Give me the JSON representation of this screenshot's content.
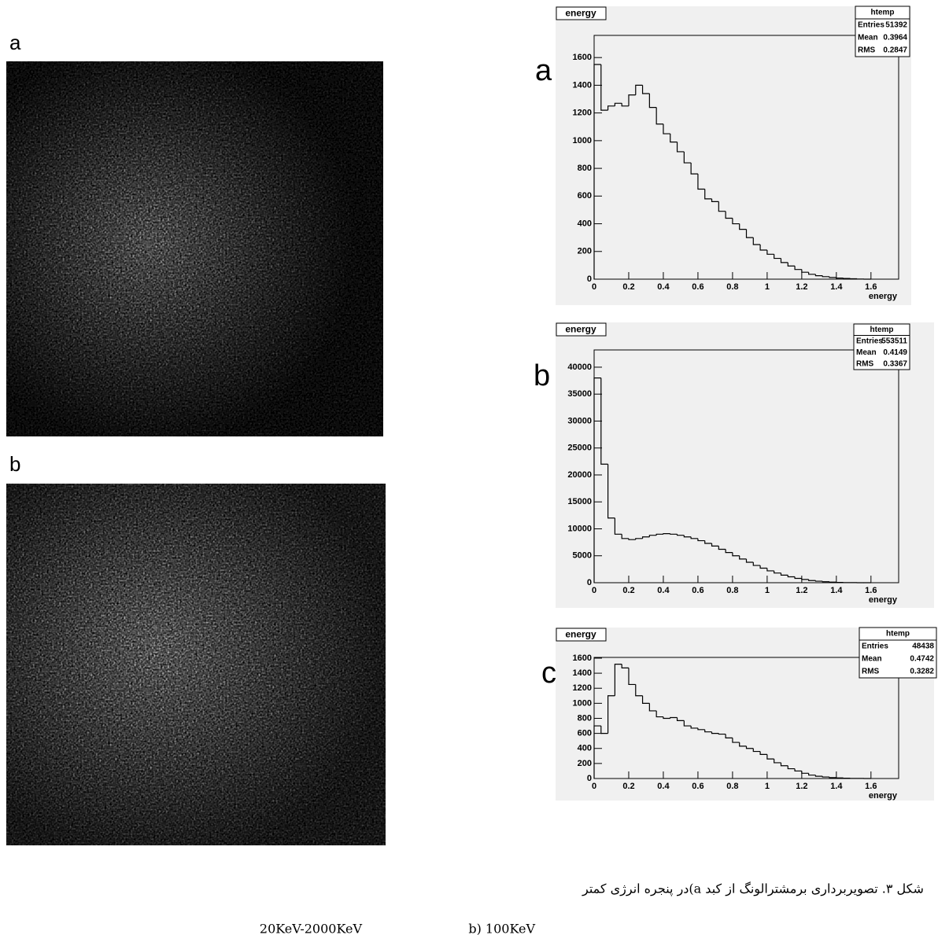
{
  "panels": [
    {
      "label": "a"
    },
    {
      "label": "b"
    }
  ],
  "caption": {
    "lines": [
      "شکل ۳. تصویربرداری برمشترالونگ از کبد  a)در پنجره انرژی کمتر",
      "20KeV-2000KeV",
      "b) 100KeV"
    ]
  },
  "chart_data": [
    {
      "type": "histogram",
      "panel_label": "a",
      "title": "energy",
      "xlabel": "energy",
      "color": "#000000",
      "stats_title": "htemp",
      "stats": [
        {
          "label": "Entries",
          "value": 51392
        },
        {
          "label": "Mean",
          "value": 0.3964
        },
        {
          "label": "RMS",
          "value": 0.2847
        }
      ],
      "bins": [
        0,
        0.04,
        0.08,
        0.12,
        0.16,
        0.2,
        0.24,
        0.28,
        0.32,
        0.36,
        0.4,
        0.44,
        0.48,
        0.52,
        0.56,
        0.6,
        0.64,
        0.68,
        0.72,
        0.76,
        0.8,
        0.84,
        0.88,
        0.92,
        0.96,
        1,
        1.04,
        1.08,
        1.12,
        1.16,
        1.2,
        1.24,
        1.28,
        1.32,
        1.36,
        1.4,
        1.44,
        1.48,
        1.52,
        1.56,
        1.6
      ],
      "counts": [
        1550,
        1220,
        1250,
        1270,
        1250,
        1330,
        1400,
        1340,
        1240,
        1120,
        1050,
        990,
        920,
        840,
        760,
        650,
        580,
        560,
        490,
        440,
        400,
        360,
        300,
        250,
        210,
        180,
        150,
        120,
        95,
        70,
        50,
        35,
        25,
        18,
        12,
        8,
        5,
        3,
        1,
        0
      ],
      "xlim": [
        0,
        1.76
      ],
      "ylim": [
        0,
        1760
      ],
      "xticks": [
        0,
        0.2,
        0.4,
        0.6,
        0.8,
        1,
        1.2,
        1.4,
        1.6
      ],
      "yticks": [
        0,
        200,
        400,
        600,
        800,
        1000,
        1200,
        1400,
        1600
      ]
    },
    {
      "type": "histogram",
      "panel_label": "b",
      "title": "energy",
      "xlabel": "energy",
      "color": "#000000",
      "stats_title": "htemp",
      "stats": [
        {
          "label": "Entries",
          "value": 553511
        },
        {
          "label": "Mean",
          "value": 0.4149
        },
        {
          "label": "RMS",
          "value": 0.3367
        }
      ],
      "bins": [
        0,
        0.04,
        0.08,
        0.12,
        0.16,
        0.2,
        0.24,
        0.28,
        0.32,
        0.36,
        0.4,
        0.44,
        0.48,
        0.52,
        0.56,
        0.6,
        0.64,
        0.68,
        0.72,
        0.76,
        0.8,
        0.84,
        0.88,
        0.92,
        0.96,
        1,
        1.04,
        1.08,
        1.12,
        1.16,
        1.2,
        1.24,
        1.28,
        1.32,
        1.36,
        1.4,
        1.44,
        1.48,
        1.52,
        1.56,
        1.6
      ],
      "counts": [
        38000,
        22000,
        12000,
        9000,
        8200,
        8000,
        8200,
        8500,
        8800,
        9000,
        9100,
        9000,
        8800,
        8500,
        8200,
        7800,
        7300,
        6800,
        6200,
        5600,
        5000,
        4400,
        3800,
        3200,
        2700,
        2200,
        1800,
        1400,
        1100,
        800,
        600,
        400,
        280,
        180,
        110,
        60,
        30,
        15,
        5,
        0
      ],
      "xlim": [
        0,
        1.76
      ],
      "ylim": [
        0,
        43200
      ],
      "xticks": [
        0,
        0.2,
        0.4,
        0.6,
        0.8,
        1,
        1.2,
        1.4,
        1.6
      ],
      "yticks": [
        0,
        5000,
        10000,
        15000,
        20000,
        25000,
        30000,
        35000,
        40000
      ]
    },
    {
      "type": "histogram",
      "panel_label": "c",
      "title": "energy",
      "xlabel": "energy",
      "color": "#000000",
      "stats_title": "htemp",
      "stats": [
        {
          "label": "Entries",
          "value": 48438
        },
        {
          "label": "Mean",
          "value": 0.4742
        },
        {
          "label": "RMS",
          "value": 0.3282
        }
      ],
      "bins": [
        0,
        0.04,
        0.08,
        0.12,
        0.16,
        0.2,
        0.24,
        0.28,
        0.32,
        0.36,
        0.4,
        0.44,
        0.48,
        0.52,
        0.56,
        0.6,
        0.64,
        0.68,
        0.72,
        0.76,
        0.8,
        0.84,
        0.88,
        0.92,
        0.96,
        1,
        1.04,
        1.08,
        1.12,
        1.16,
        1.2,
        1.24,
        1.28,
        1.32,
        1.36,
        1.4,
        1.44,
        1.48,
        1.52,
        1.56,
        1.6
      ],
      "counts": [
        700,
        600,
        1100,
        1520,
        1470,
        1250,
        1100,
        1000,
        900,
        820,
        800,
        810,
        770,
        700,
        670,
        650,
        620,
        600,
        590,
        540,
        480,
        430,
        400,
        360,
        320,
        260,
        210,
        170,
        130,
        100,
        70,
        45,
        30,
        20,
        12,
        8,
        4,
        2,
        1,
        0
      ],
      "xlim": [
        0,
        1.76
      ],
      "ylim": [
        0,
        1610
      ],
      "xticks": [
        0,
        0.2,
        0.4,
        0.6,
        0.8,
        1,
        1.2,
        1.4,
        1.6
      ],
      "yticks": [
        0,
        200,
        400,
        600,
        800,
        1000,
        1200,
        1400,
        1600
      ]
    }
  ]
}
